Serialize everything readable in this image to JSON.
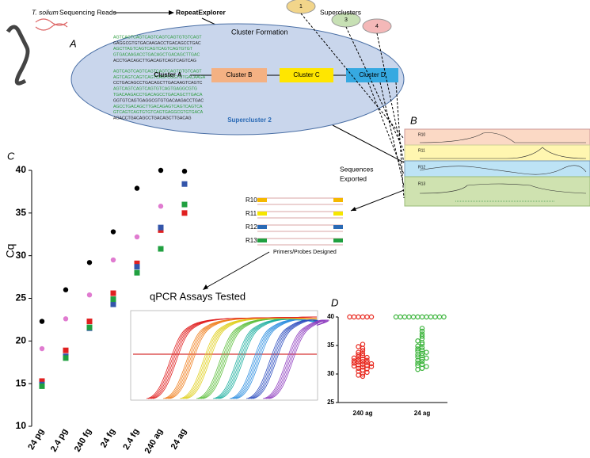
{
  "diagram": {
    "reads_species": "T. solium",
    "reads_label": "Sequencing Reads",
    "repeat_explorer": "RepeatExplorer",
    "panel_a": "A",
    "cluster_formation": "Cluster Formation",
    "clusters": [
      "Cluster A",
      "Cluster B",
      "Cluster C",
      "Cluster D"
    ],
    "supercluster": "Supercluster 2",
    "superclusters_label": "Superclusters",
    "supercluster_nodes": [
      "1",
      "3",
      "4"
    ],
    "sequences": [
      "AGTCAGTCAGTCAGTCAGTCAGTGTGTCAGT",
      "GAGGCGTGTGACAAGACCTGACAGCCTGAC",
      "AGCTTAGTCAGTCAGTCAGTCAGTGTGT",
      "GTGACAAGACCTGACAGCTGACAGCTTGAC",
      "ACCTGACAGCTTGACAGTCAGTCAGTCAG",
      "AGTCAGTCAGTCAGTCAGTCAGTGTGTCAGT",
      "AGTCAGTCAGTCAGTCAGTCGGTGTGACAAGA",
      "CCTGACAGCCTGACAGCTTGACAAGTCAGTC",
      "AGTCAGTCAGTCAGTGTCAGTGAGGCGTG",
      "TGACAAGACCTGACAGCCTGACAGCTTGACA",
      "GGTGTCAGTGAGGCGTGTGACAAGACCTGAC",
      "AGCCTGACAGCTTGACAGAGTCAGTCAGTCA",
      "GTCAGTCAGTGTGTCAGTGAGGCGTGTGACA",
      "AGACCTGACAGCCTGACAGCTTGACAG"
    ],
    "panel_b": "B",
    "tracks": [
      "R10",
      "R11",
      "R12",
      "R13"
    ],
    "sequences_exported": [
      "Sequences",
      "Exported"
    ],
    "primers": [
      "R10",
      "R11",
      "R12",
      "R13"
    ],
    "primers_label": "Primers/Probes Designed",
    "qpcr_label": "qPCR Assays Tested",
    "panel_c": "C",
    "panel_d": "D"
  },
  "chart_data": [
    {
      "type": "scatter",
      "y_label": "Cq",
      "categories": [
        "24 pg",
        "2.4 pg",
        "240 fg",
        "24 fg",
        "2.4 fg",
        "240 ag",
        "24 ag"
      ],
      "ylim": [
        10,
        40
      ],
      "yticks": [
        10,
        15,
        20,
        25,
        30,
        35,
        40
      ],
      "series": [
        {
          "color": "#000000",
          "values": [
            22.3,
            26,
            29.2,
            32.8,
            37.9,
            40,
            39.9
          ]
        },
        {
          "color": "#e07bd0",
          "values": [
            19.1,
            22.6,
            25.4,
            29.5,
            32.2,
            35.8,
            null
          ]
        },
        {
          "color": "#e02020",
          "values": [
            15.3,
            18.9,
            22.3,
            25.6,
            29.1,
            33.0,
            35.0
          ]
        },
        {
          "color": "#3355aa",
          "values": [
            14.9,
            18.2,
            21.5,
            24.3,
            28.7,
            33.3,
            38.4
          ]
        },
        {
          "color": "#20a040",
          "values": [
            14.7,
            18.0,
            21.6,
            24.9,
            28.0,
            30.8,
            36.0
          ]
        }
      ]
    },
    {
      "type": "scatter",
      "categories": [
        "240 ag",
        "24 ag"
      ],
      "ylim": [
        25,
        40
      ],
      "yticks": [
        25,
        30,
        35,
        40
      ],
      "series": [
        {
          "color": "#e8281e",
          "values": [
            40,
            40,
            40,
            40,
            40,
            40,
            35.2,
            34.8,
            34.5,
            34.1,
            33.8,
            33.6,
            33.4,
            33.2,
            33.0,
            32.9,
            32.8,
            32.6,
            32.5,
            32.4,
            32.3,
            32.2,
            32.1,
            32.0,
            31.9,
            31.8,
            31.7,
            31.6,
            31.5,
            31.4,
            31.3,
            31.2,
            31.0,
            30.9,
            30.7,
            30.5,
            30.3,
            30.0,
            29.8,
            29.6
          ]
        },
        {
          "color": "#3cb43c",
          "values": [
            40,
            40,
            40,
            40,
            40,
            40,
            40,
            40,
            40,
            40,
            40,
            40,
            38.0,
            37.5,
            37.0,
            36.6,
            36.2,
            35.8,
            35.5,
            35.2,
            34.9,
            34.6,
            34.4,
            34.2,
            34.0,
            33.8,
            33.6,
            33.4,
            33.2,
            33.0,
            32.8,
            32.6,
            32.4,
            32.2,
            31.9,
            31.7,
            31.5,
            31.3,
            31.0,
            30.8
          ]
        }
      ]
    }
  ]
}
